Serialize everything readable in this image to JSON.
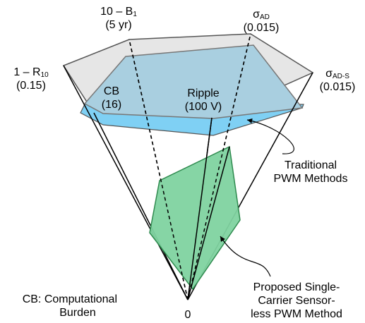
{
  "axes": {
    "b1": {
      "name": "10 – B",
      "sub": "1",
      "value": "(5 yr)"
    },
    "sigma_ad": {
      "name": "σ",
      "sub": "AD",
      "value": "(0.015)"
    },
    "r10": {
      "name": "1 – R",
      "sub": "10",
      "value": "(0.15)"
    },
    "sigma_ads": {
      "name": "σ",
      "sub": "AD-S",
      "value": "(0.015)"
    },
    "cb": {
      "name": "CB",
      "value": "(16)"
    },
    "ripple": {
      "name": "Ripple",
      "value": "(100 V)"
    }
  },
  "origin_label": "0",
  "legend": {
    "traditional": [
      "Traditional",
      "PWM Methods"
    ],
    "proposed": [
      "Proposed Single-",
      "Carrier Sensor-",
      "less PWM Method"
    ]
  },
  "note": [
    "CB: Computational",
    "Burden"
  ],
  "colors": {
    "outer_fill": "#e6e6e6",
    "traditional_fill": "#a9cfe0",
    "traditional_band": "#7fd0f4",
    "proposed_fill": "#7fd3a0",
    "proposed_stroke": "#2e8a4e"
  }
}
